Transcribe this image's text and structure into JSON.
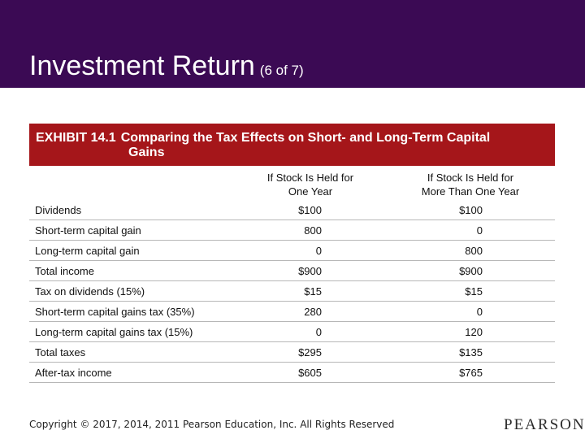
{
  "slide": {
    "title": "Investment Return",
    "title_suffix": "(6 of 7)"
  },
  "exhibit": {
    "number": "EXHIBIT 14.1",
    "title_line1": "Comparing the Tax Effects on Short- and Long-Term Capital",
    "title_line2": "Gains"
  },
  "table": {
    "columns": [
      {
        "line1": "If Stock Is Held for",
        "line2": "One Year"
      },
      {
        "line1": "If Stock Is Held for",
        "line2": "More Than One Year"
      }
    ],
    "rows": [
      {
        "label": "Dividends",
        "v1": "$100",
        "v2": "$100"
      },
      {
        "label": "Short-term capital gain",
        "v1": "800",
        "v2": "0"
      },
      {
        "label": "Long-term capital gain",
        "v1": "0",
        "v2": "800"
      },
      {
        "label": "Total income",
        "v1": "$900",
        "v2": "$900"
      },
      {
        "label": "Tax on dividends (15%)",
        "v1": "$15",
        "v2": "$15"
      },
      {
        "label": "Short-term capital gains tax (35%)",
        "v1": "280",
        "v2": "0"
      },
      {
        "label": "Long-term capital gains tax (15%)",
        "v1": "0",
        "v2": "120"
      },
      {
        "label": "Total taxes",
        "v1": "$295",
        "v2": "$135"
      },
      {
        "label": "After-tax income",
        "v1": "$605",
        "v2": "$765"
      }
    ]
  },
  "footer": {
    "copyright": "Copyright © 2017, 2014, 2011 Pearson Education, Inc. All Rights Reserved",
    "logo": "PEARSON"
  },
  "colors": {
    "header_band": "#3b0a54",
    "exhibit_band": "#a5161a"
  }
}
